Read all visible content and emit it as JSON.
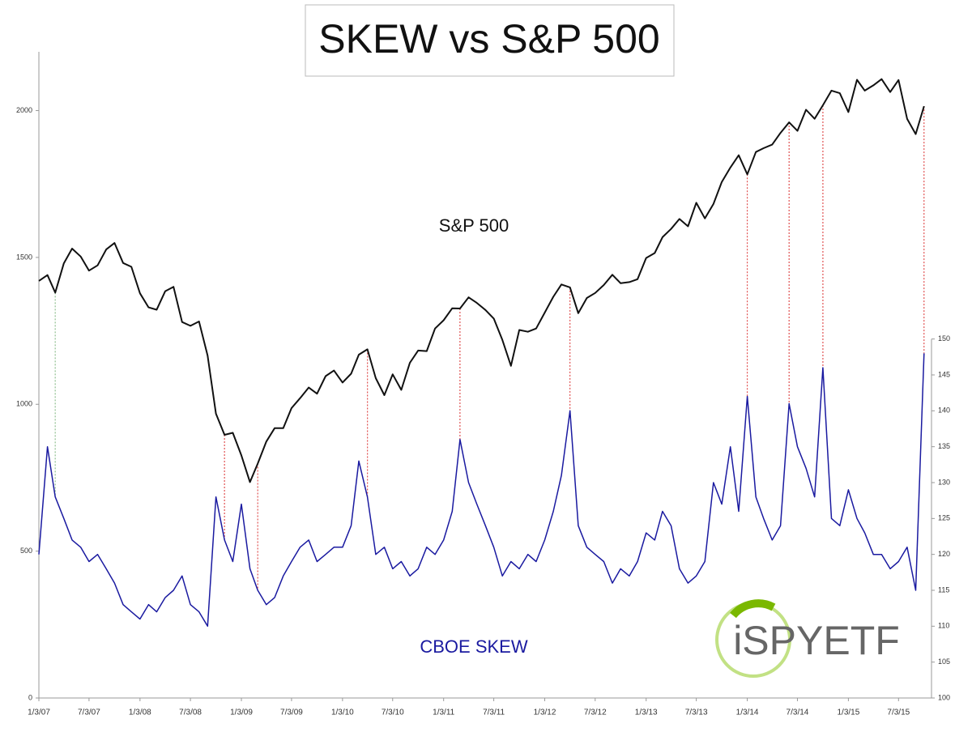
{
  "chart_data": {
    "type": "line",
    "title": "SKEW vs S&P 500",
    "x": [
      "2007-01-03",
      "2007-02-03",
      "2007-03-03",
      "2007-04-03",
      "2007-05-03",
      "2007-06-03",
      "2007-07-03",
      "2007-08-03",
      "2007-09-03",
      "2007-10-03",
      "2007-11-03",
      "2007-12-03",
      "2008-01-03",
      "2008-02-03",
      "2008-03-03",
      "2008-04-03",
      "2008-05-03",
      "2008-06-03",
      "2008-07-03",
      "2008-08-03",
      "2008-09-03",
      "2008-10-03",
      "2008-11-03",
      "2008-12-03",
      "2009-01-03",
      "2009-02-03",
      "2009-03-03",
      "2009-04-03",
      "2009-05-03",
      "2009-06-03",
      "2009-07-03",
      "2009-08-03",
      "2009-09-03",
      "2009-10-03",
      "2009-11-03",
      "2009-12-03",
      "2010-01-03",
      "2010-02-03",
      "2010-03-03",
      "2010-04-03",
      "2010-05-03",
      "2010-06-03",
      "2010-07-03",
      "2010-08-03",
      "2010-09-03",
      "2010-10-03",
      "2010-11-03",
      "2010-12-03",
      "2011-01-03",
      "2011-02-03",
      "2011-03-03",
      "2011-04-03",
      "2011-05-03",
      "2011-06-03",
      "2011-07-03",
      "2011-08-03",
      "2011-09-03",
      "2011-10-03",
      "2011-11-03",
      "2011-12-03",
      "2012-01-03",
      "2012-02-03",
      "2012-03-03",
      "2012-04-03",
      "2012-05-03",
      "2012-06-03",
      "2012-07-03",
      "2012-08-03",
      "2012-09-03",
      "2012-10-03",
      "2012-11-03",
      "2012-12-03",
      "2013-01-03",
      "2013-02-03",
      "2013-03-03",
      "2013-04-03",
      "2013-05-03",
      "2013-06-03",
      "2013-07-03",
      "2013-08-03",
      "2013-09-03",
      "2013-10-03",
      "2013-11-03",
      "2013-12-03",
      "2014-01-03",
      "2014-02-03",
      "2014-03-03",
      "2014-04-03",
      "2014-05-03",
      "2014-06-03",
      "2014-07-03",
      "2014-08-03",
      "2014-09-03",
      "2014-10-03",
      "2014-11-03",
      "2014-12-03",
      "2015-01-03",
      "2015-02-03",
      "2015-03-03",
      "2015-04-03",
      "2015-05-03",
      "2015-06-03",
      "2015-07-03",
      "2015-08-03",
      "2015-09-03",
      "2015-10-03"
    ],
    "series": [
      {
        "name": "S&P 500",
        "color": "#111111",
        "axis": "y",
        "values": [
          1420,
          1440,
          1380,
          1480,
          1530,
          1503,
          1455,
          1473,
          1527,
          1549,
          1481,
          1468,
          1378,
          1330,
          1322,
          1385,
          1400,
          1280,
          1267,
          1282,
          1166,
          968,
          896,
          903,
          826,
          735,
          798,
          873,
          919,
          919,
          987,
          1021,
          1057,
          1036,
          1096,
          1115,
          1074,
          1104,
          1169,
          1187,
          1089,
          1031,
          1102,
          1049,
          1141,
          1183,
          1181,
          1258,
          1286,
          1327,
          1326,
          1364,
          1345,
          1321,
          1292,
          1219,
          1131,
          1253,
          1247,
          1258,
          1312,
          1366,
          1408,
          1398,
          1310,
          1362,
          1379,
          1406,
          1441,
          1412,
          1416,
          1426,
          1498,
          1515,
          1569,
          1597,
          1631,
          1606,
          1686,
          1633,
          1682,
          1757,
          1806,
          1848,
          1783,
          1859,
          1872,
          1884,
          1924,
          1960,
          1931,
          2003,
          1972,
          2018,
          2068,
          2059,
          1995,
          2105,
          2068,
          2086,
          2107,
          2063,
          2104,
          1972,
          1920,
          2015
        ]
      },
      {
        "name": "CBOE SKEW",
        "color": "#1a1aa0",
        "axis": "y2",
        "values": [
          120,
          135,
          128,
          125,
          122,
          121,
          119,
          120,
          118,
          116,
          113,
          112,
          111,
          113,
          112,
          114,
          115,
          117,
          113,
          112,
          110,
          128,
          122,
          119,
          127,
          118,
          115,
          113,
          114,
          117,
          119,
          121,
          122,
          119,
          120,
          121,
          121,
          124,
          133,
          128,
          120,
          121,
          118,
          119,
          117,
          118,
          121,
          120,
          122,
          126,
          136,
          130,
          127,
          124,
          121,
          117,
          119,
          118,
          120,
          119,
          122,
          126,
          131,
          140,
          124,
          121,
          120,
          119,
          116,
          118,
          117,
          119,
          123,
          122,
          126,
          124,
          118,
          116,
          117,
          119,
          130,
          127,
          135,
          126,
          142,
          128,
          125,
          122,
          124,
          141,
          135,
          132,
          128,
          146,
          125,
          124,
          129,
          125,
          123,
          120,
          120,
          118,
          119,
          121,
          115,
          148
        ]
      }
    ],
    "highlights": [
      {
        "date": "2007-03-03",
        "color": "#8fbf8f"
      },
      {
        "date": "2008-11-03",
        "color": "#e05050"
      },
      {
        "date": "2009-03-03",
        "color": "#e05050"
      },
      {
        "date": "2010-04-03",
        "color": "#e05050"
      },
      {
        "date": "2011-03-03",
        "color": "#e05050"
      },
      {
        "date": "2012-04-03",
        "color": "#e05050"
      },
      {
        "date": "2014-01-03",
        "color": "#e05050"
      },
      {
        "date": "2014-06-03",
        "color": "#e05050"
      },
      {
        "date": "2014-10-03",
        "color": "#e05050"
      },
      {
        "date": "2015-10-03",
        "color": "#e05050"
      }
    ],
    "xlim": [
      "2007-01-03",
      "2015-10-30"
    ],
    "xticks": [
      {
        "value": "2007-01-03",
        "label": "1/3/07"
      },
      {
        "value": "2007-07-03",
        "label": "7/3/07"
      },
      {
        "value": "2008-01-03",
        "label": "1/3/08"
      },
      {
        "value": "2008-07-03",
        "label": "7/3/08"
      },
      {
        "value": "2009-01-03",
        "label": "1/3/09"
      },
      {
        "value": "2009-07-03",
        "label": "7/3/09"
      },
      {
        "value": "2010-01-03",
        "label": "1/3/10"
      },
      {
        "value": "2010-07-03",
        "label": "7/3/10"
      },
      {
        "value": "2011-01-03",
        "label": "1/3/11"
      },
      {
        "value": "2011-07-03",
        "label": "7/3/11"
      },
      {
        "value": "2012-01-03",
        "label": "1/3/12"
      },
      {
        "value": "2012-07-03",
        "label": "7/3/12"
      },
      {
        "value": "2013-01-03",
        "label": "1/3/13"
      },
      {
        "value": "2013-07-03",
        "label": "7/3/13"
      },
      {
        "value": "2014-01-03",
        "label": "1/3/14"
      },
      {
        "value": "2014-07-03",
        "label": "7/3/14"
      },
      {
        "value": "2015-01-03",
        "label": "1/3/15"
      },
      {
        "value": "2015-07-03",
        "label": "7/3/15"
      }
    ],
    "ylim": [
      0,
      2200
    ],
    "yticks": [
      0,
      500,
      1000,
      1500,
      2000
    ],
    "y2lim": [
      100,
      190
    ],
    "y2ticks": [
      100,
      105,
      110,
      115,
      120,
      125,
      130,
      135,
      140,
      145,
      150
    ],
    "logo": "iSPYETF"
  }
}
